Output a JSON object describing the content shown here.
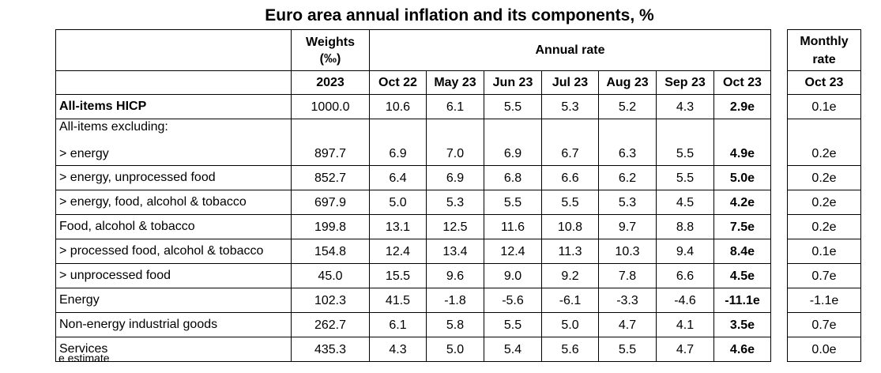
{
  "title": "Euro area annual inflation and its components, %",
  "header": {
    "weights_label_line1": "Weights",
    "weights_label_line2": "(‰)",
    "weights_year": "2023",
    "annual_rate_label": "Annual rate",
    "monthly_rate_line1": "Monthly",
    "monthly_rate_line2": "rate",
    "months": [
      "Oct 22",
      "May 23",
      "Jun 23",
      "Jul 23",
      "Aug 23",
      "Sep 23",
      "Oct 23"
    ],
    "monthly_month": "Oct 23"
  },
  "rows": [
    {
      "label": "All-items HICP",
      "weight": "1000.0",
      "rates": [
        "10.6",
        "6.1",
        "5.5",
        "5.3",
        "5.2",
        "4.3",
        "2.9e"
      ],
      "monthly": "0.1e"
    },
    {
      "label": "All-items excluding:"
    },
    {
      "label": "> energy",
      "weight": "897.7",
      "rates": [
        "6.9",
        "7.0",
        "6.9",
        "6.7",
        "6.3",
        "5.5",
        "4.9e"
      ],
      "monthly": "0.2e"
    },
    {
      "label": "> energy, unprocessed food",
      "weight": "852.7",
      "rates": [
        "6.4",
        "6.9",
        "6.8",
        "6.6",
        "6.2",
        "5.5",
        "5.0e"
      ],
      "monthly": "0.2e"
    },
    {
      "label": "> energy, food, alcohol & tobacco",
      "weight": "697.9",
      "rates": [
        "5.0",
        "5.3",
        "5.5",
        "5.5",
        "5.3",
        "4.5",
        "4.2e"
      ],
      "monthly": "0.2e"
    },
    {
      "label": "Food, alcohol & tobacco",
      "weight": "199.8",
      "rates": [
        "13.1",
        "12.5",
        "11.6",
        "10.8",
        "9.7",
        "8.8",
        "7.5e"
      ],
      "monthly": "0.2e"
    },
    {
      "label": "> processed food, alcohol & tobacco",
      "weight": "154.8",
      "rates": [
        "12.4",
        "13.4",
        "12.4",
        "11.3",
        "10.3",
        "9.4",
        "8.4e"
      ],
      "monthly": "0.1e"
    },
    {
      "label": "> unprocessed food",
      "weight": "45.0",
      "rates": [
        "15.5",
        "9.6",
        "9.0",
        "9.2",
        "7.8",
        "6.6",
        "4.5e"
      ],
      "monthly": "0.7e"
    },
    {
      "label": "Energy",
      "weight": "102.3",
      "rates": [
        "41.5",
        "-1.8",
        "-5.6",
        "-6.1",
        "-3.3",
        "-4.6",
        "-11.1e"
      ],
      "monthly": "-1.1e"
    },
    {
      "label": "Non-energy industrial goods",
      "weight": "262.7",
      "rates": [
        "6.1",
        "5.8",
        "5.5",
        "5.0",
        "4.7",
        "4.1",
        "3.5e"
      ],
      "monthly": "0.7e"
    },
    {
      "label": "Services",
      "weight": "435.3",
      "rates": [
        "4.3",
        "5.0",
        "5.4",
        "5.6",
        "5.5",
        "4.7",
        "4.6e"
      ],
      "monthly": "0.0e"
    }
  ],
  "footnote": "e estimate"
}
